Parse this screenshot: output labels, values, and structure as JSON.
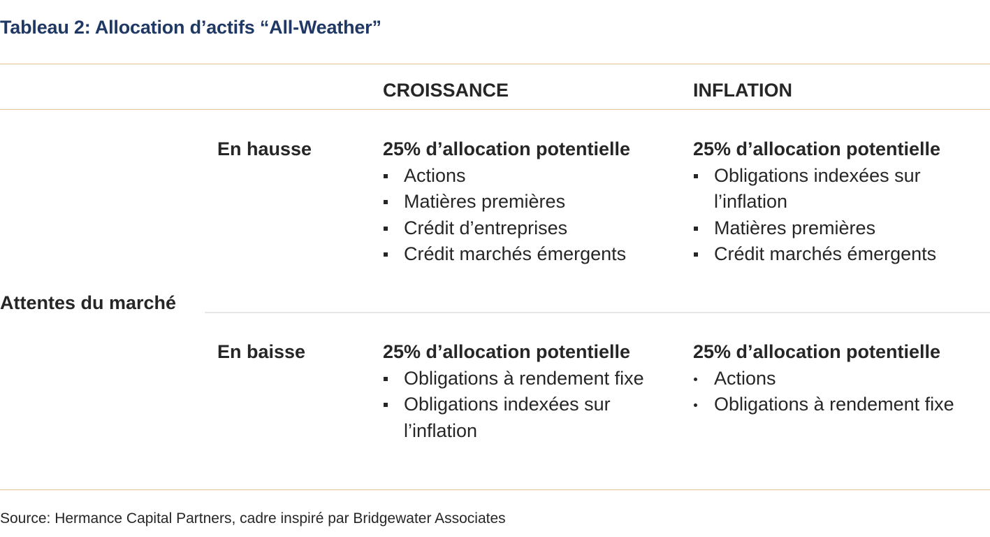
{
  "title": "Tableau 2: Allocation d’actifs “All-Weather”",
  "columns": {
    "growth": "CROISSANCE",
    "inflation": "INFLATION"
  },
  "market_label": "Attentes du marché",
  "rows": {
    "up": {
      "label": "En hausse",
      "growth": {
        "heading": "25% d’allocation potentielle",
        "items": [
          "Actions",
          "Matières premières",
          "Crédit d’entreprises",
          "Crédit marchés émergents"
        ]
      },
      "inflation": {
        "heading": "25% d’allocation potentielle",
        "items": [
          "Obligations indexées sur l’inflation",
          "Matières premières",
          "Crédit marchés émergents"
        ]
      }
    },
    "down": {
      "label": "En baisse",
      "growth": {
        "heading": "25% d’allocation potentielle",
        "items": [
          "Obligations à rendement fixe",
          "Obligations indexées sur l’inflation"
        ]
      },
      "inflation": {
        "heading": "25% d’allocation potentielle",
        "items": [
          "Actions",
          "Obligations à rendement fixe"
        ]
      }
    }
  },
  "source": "Source: Hermance Capital Partners, cadre inspiré par Bridgewater Associates"
}
